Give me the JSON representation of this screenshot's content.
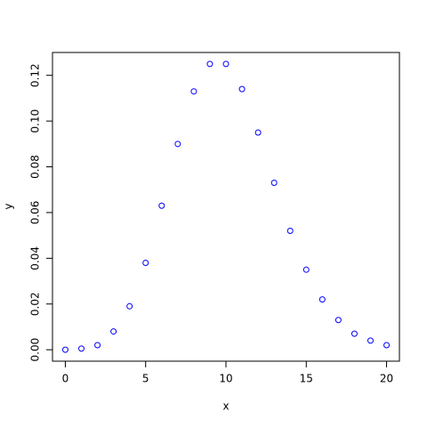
{
  "chart_data": {
    "type": "scatter",
    "xlabel": "x",
    "ylabel": "y",
    "x": [
      0,
      1,
      2,
      3,
      4,
      5,
      6,
      7,
      8,
      9,
      10,
      11,
      12,
      13,
      14,
      15,
      16,
      17,
      18,
      19,
      20
    ],
    "values": [
      0,
      0.0005,
      0.002,
      0.008,
      0.019,
      0.038,
      0.063,
      0.09,
      0.113,
      0.125,
      0.125,
      0.114,
      0.095,
      0.073,
      0.052,
      0.035,
      0.022,
      0.013,
      0.007,
      0.004,
      0.002
    ],
    "color": "#0000ff",
    "xlim": [
      -0.8,
      20.8
    ],
    "ylim": [
      -0.005,
      0.13
    ],
    "xticks": [
      0,
      5,
      10,
      15,
      20
    ],
    "yticks": [
      {
        "value": 0,
        "label": "0.00"
      },
      {
        "value": 0.02,
        "label": "0.02"
      },
      {
        "value": 0.04,
        "label": "0.04"
      },
      {
        "value": 0.06,
        "label": "0.06"
      },
      {
        "value": 0.08,
        "label": "0.08"
      },
      {
        "value": 0.1,
        "label": "0.10"
      },
      {
        "value": 0.12,
        "label": "0.12"
      }
    ]
  }
}
